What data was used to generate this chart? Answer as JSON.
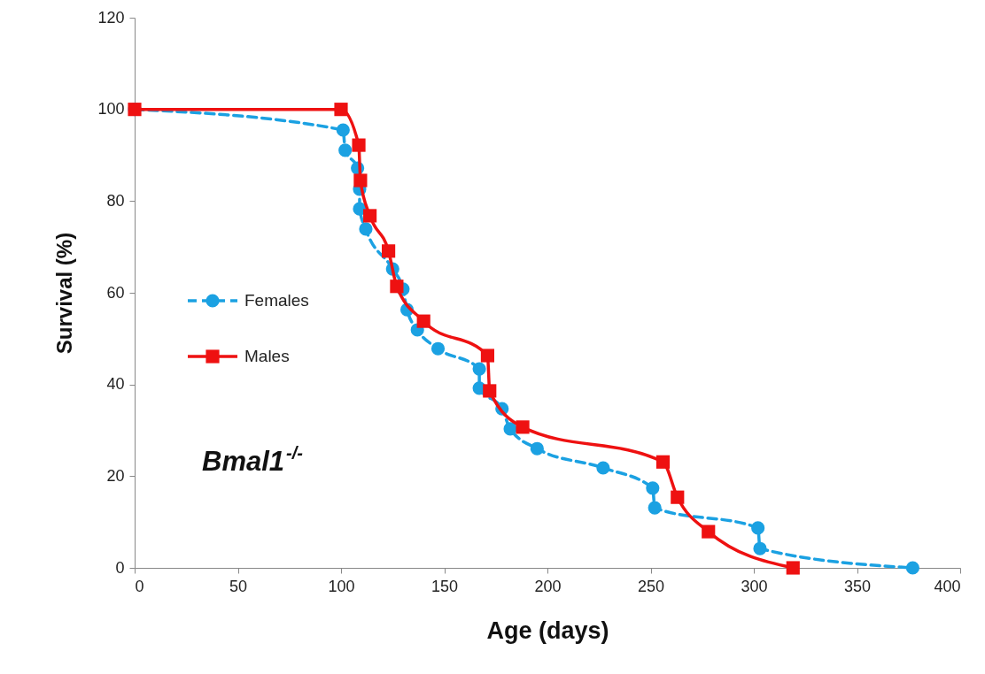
{
  "chart_data": {
    "type": "line",
    "xlabel": "Age (days)",
    "ylabel": "Survival (%)",
    "annotations": [
      "Bmal1$^{-/-}$"
    ],
    "xlim": [
      0,
      400
    ],
    "xticks": [
      0,
      50,
      100,
      150,
      200,
      250,
      300,
      350,
      400
    ],
    "ylim": [
      0,
      120
    ],
    "yticks": [
      0,
      20,
      40,
      60,
      80,
      100,
      120
    ],
    "grid": false,
    "legend": "left",
    "series": [
      {
        "name": "Females",
        "color": "#1ba1e2",
        "marker": "circle",
        "line_style": "dashed",
        "x": [
          0,
          101,
          102,
          108,
          109,
          109,
          112,
          125,
          130,
          132,
          137,
          147,
          167,
          167,
          178,
          182,
          195,
          227,
          251,
          252,
          302,
          303,
          377
        ],
        "values": [
          100,
          95.5,
          91.1,
          87.2,
          82.6,
          78.3,
          73.9,
          65.2,
          60.8,
          56.3,
          51.9,
          47.8,
          43.4,
          39.2,
          34.7,
          30.3,
          26.0,
          21.8,
          17.4,
          13.1,
          8.7,
          4.2,
          0
        ]
      },
      {
        "name": "Males",
        "color": "#ee1111",
        "marker": "square",
        "line_style": "solid",
        "x": [
          0,
          100,
          108.6,
          109.4,
          114,
          123,
          127,
          140,
          171,
          172,
          188,
          256,
          263,
          278,
          319
        ],
        "values": [
          100,
          100,
          92.2,
          84.5,
          76.8,
          69.1,
          61.4,
          53.8,
          46.3,
          38.6,
          30.7,
          23.1,
          15.4,
          7.9,
          0
        ]
      }
    ]
  }
}
